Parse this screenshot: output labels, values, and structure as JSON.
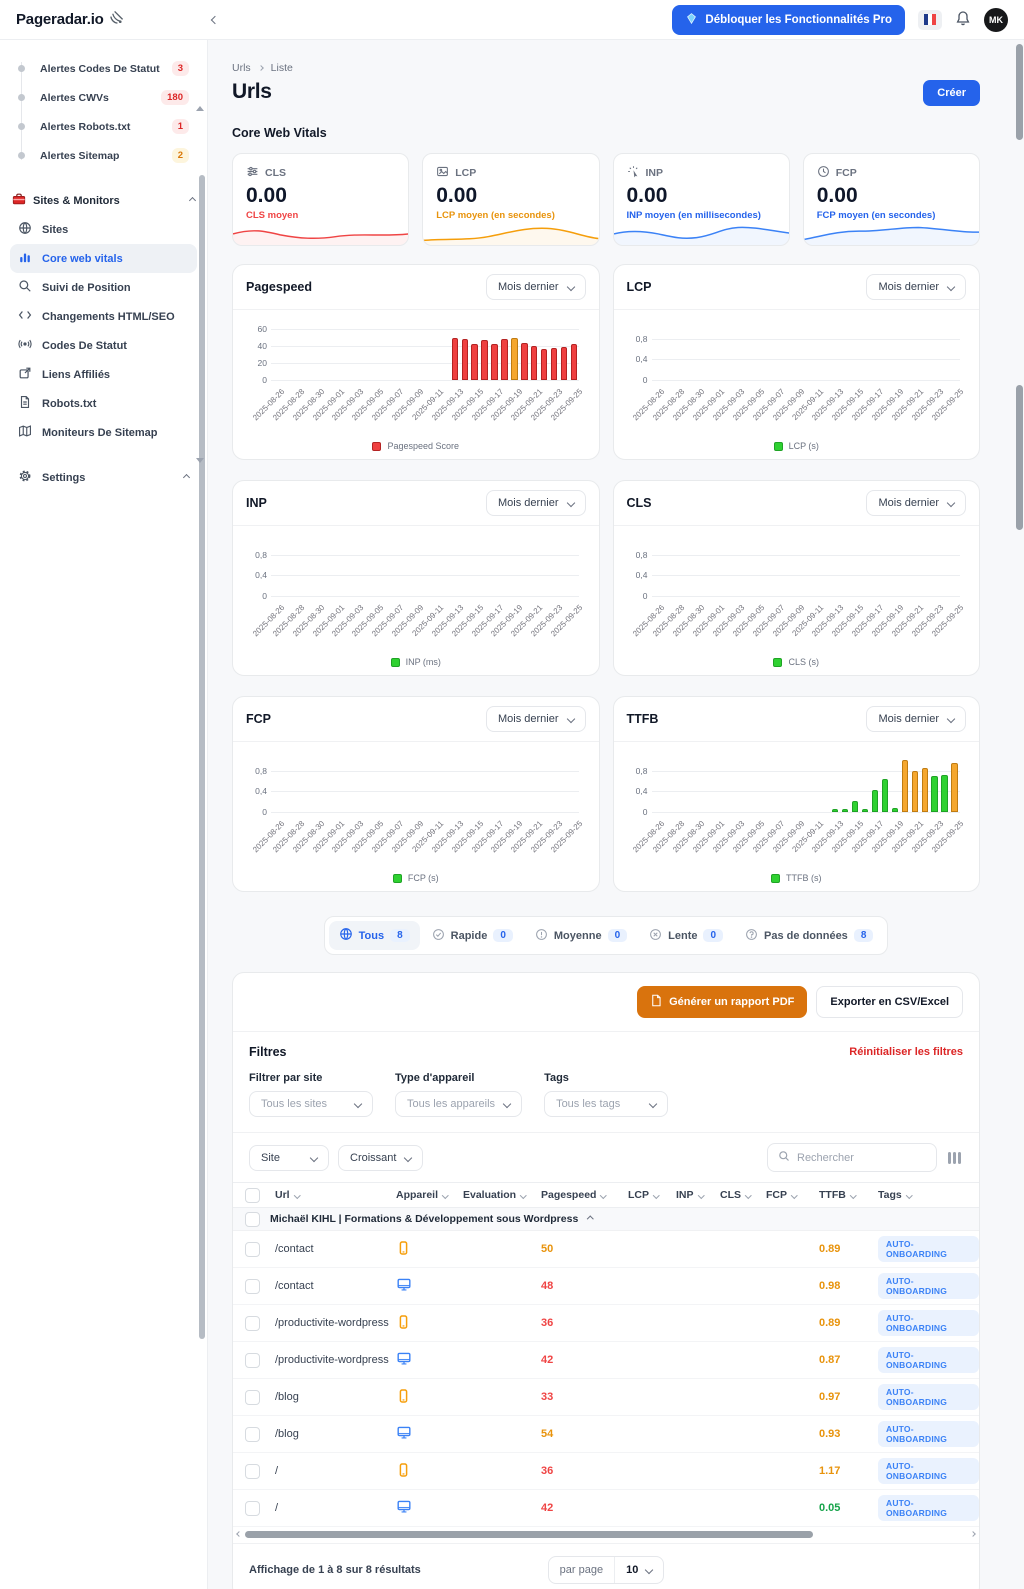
{
  "colors": {
    "accent_blue": "#2563eb",
    "pdf_orange": "#d9730d",
    "red": "#ef4444",
    "amber": "#e8930c",
    "green": "#16a34a",
    "bar_fill": {
      "red": "#ef4040",
      "orange": "#f5a72e",
      "green": "#2fd131"
    },
    "bar_border": {
      "red": "#b42323",
      "orange": "#c07c12",
      "green": "#1fa325"
    }
  },
  "header": {
    "logo": "Pageradar.io",
    "pro_button": "Débloquer les Fonctionnalités Pro",
    "avatar": "MK"
  },
  "sidebar": {
    "alerts": [
      {
        "label": "Alertes Codes De Statut",
        "count": "3",
        "tone": "red"
      },
      {
        "label": "Alertes CWVs",
        "count": "180",
        "tone": "red"
      },
      {
        "label": "Alertes Robots.txt",
        "count": "1",
        "tone": "red"
      },
      {
        "label": "Alertes Sitemap",
        "count": "2",
        "tone": "amber"
      }
    ],
    "section": "Sites & Monitors",
    "items": [
      {
        "label": "Sites",
        "icon": "globe",
        "active": false
      },
      {
        "label": "Core web vitals",
        "icon": "chart",
        "active": true
      },
      {
        "label": "Suivi de Position",
        "icon": "search",
        "active": false
      },
      {
        "label": "Changements HTML/SEO",
        "icon": "code",
        "active": false
      },
      {
        "label": "Codes De Statut",
        "icon": "signal",
        "active": false
      },
      {
        "label": "Liens Affiliés",
        "icon": "external",
        "active": false
      },
      {
        "label": "Robots.txt",
        "icon": "file",
        "active": false
      },
      {
        "label": "Moniteurs De Sitemap",
        "icon": "map",
        "active": false
      }
    ],
    "settings": "Settings"
  },
  "breadcrumb": {
    "parent": "Urls",
    "current": "Liste"
  },
  "page": {
    "title": "Urls",
    "create_button": "Créer",
    "section_title": "Core Web Vitals"
  },
  "metric_cards": [
    {
      "key": "CLS",
      "icon": "sliders",
      "value": "0.00",
      "caption": "CLS moyen",
      "color": "#ef4444",
      "spark": "red"
    },
    {
      "key": "LCP",
      "icon": "image",
      "value": "0.00",
      "caption": "LCP moyen (en secondes)",
      "color": "#e8930c",
      "spark": "orange"
    },
    {
      "key": "INP",
      "icon": "tap",
      "value": "0.00",
      "caption": "INP moyen (en millisecondes)",
      "color": "#2563eb",
      "spark": "blue1"
    },
    {
      "key": "FCP",
      "icon": "clock",
      "value": "0.00",
      "caption": "FCP moyen (en secondes)",
      "color": "#2563eb",
      "spark": "blue2"
    }
  ],
  "period_label": "Mois dernier",
  "chart_data": [
    {
      "key": "pagespeed",
      "type": "bar",
      "title": "Pagespeed",
      "period": "Mois dernier",
      "legend": "Pagespeed Score",
      "legend_color": "red",
      "x_start": "2025-08-26",
      "categories": [
        "2025-08-26",
        "2025-08-28",
        "2025-08-30",
        "2025-09-01",
        "2025-09-03",
        "2025-09-05",
        "2025-09-07",
        "2025-09-09",
        "2025-09-11",
        "2025-09-13",
        "2025-09-15",
        "2025-09-17",
        "2025-09-19",
        "2025-09-21",
        "2025-09-23",
        "2025-09-25"
      ],
      "ytick_values": [
        0,
        20,
        40,
        60
      ],
      "yticks": [
        "0",
        "20",
        "40",
        "60"
      ],
      "ymax": 66,
      "ylim": [
        0,
        60
      ],
      "bar_dates": [
        "2025-09-13",
        "2025-09-14",
        "2025-09-15",
        "2025-09-16",
        "2025-09-17",
        "2025-09-18",
        "2025-09-19",
        "2025-09-20",
        "2025-09-21",
        "2025-09-22",
        "2025-09-23",
        "2025-09-24",
        "2025-09-25"
      ],
      "values": [
        49,
        48,
        43,
        47,
        43,
        48,
        50,
        44,
        40,
        36,
        38,
        39,
        42
      ],
      "bar_colors": [
        "red",
        "red",
        "red",
        "red",
        "red",
        "red",
        "orange",
        "red",
        "red",
        "red",
        "red",
        "red",
        "red"
      ]
    },
    {
      "key": "lcp",
      "type": "bar",
      "title": "LCP",
      "period": "Mois dernier",
      "legend": "LCP (s)",
      "legend_color": "green",
      "x_start": "2025-08-26",
      "categories": [
        "2025-08-26",
        "2025-08-28",
        "2025-08-30",
        "2025-09-01",
        "2025-09-03",
        "2025-09-05",
        "2025-09-07",
        "2025-09-09",
        "2025-09-11",
        "2025-09-13",
        "2025-09-15",
        "2025-09-17",
        "2025-09-19",
        "2025-09-21",
        "2025-09-23",
        "2025-09-25"
      ],
      "ytick_values": [
        0,
        0.4,
        0.8
      ],
      "yticks": [
        "0",
        "0,4",
        "0,8"
      ],
      "ymax": 1.08,
      "ylim": [
        0,
        0.8
      ],
      "bar_dates": [],
      "values": [],
      "bar_colors": []
    },
    {
      "key": "inp",
      "type": "bar",
      "title": "INP",
      "period": "Mois dernier",
      "legend": "INP (ms)",
      "legend_color": "green",
      "x_start": "2025-08-26",
      "categories": [
        "2025-08-26",
        "2025-08-28",
        "2025-08-30",
        "2025-09-01",
        "2025-09-03",
        "2025-09-05",
        "2025-09-07",
        "2025-09-09",
        "2025-09-11",
        "2025-09-13",
        "2025-09-15",
        "2025-09-17",
        "2025-09-19",
        "2025-09-21",
        "2025-09-23",
        "2025-09-25"
      ],
      "ytick_values": [
        0,
        0.4,
        0.8
      ],
      "yticks": [
        "0",
        "0,4",
        "0,8"
      ],
      "ymax": 1.08,
      "ylim": [
        0,
        0.8
      ],
      "bar_dates": [],
      "values": [],
      "bar_colors": []
    },
    {
      "key": "cls",
      "type": "bar",
      "title": "CLS",
      "period": "Mois dernier",
      "legend": "CLS (s)",
      "legend_color": "green",
      "x_start": "2025-08-26",
      "categories": [
        "2025-08-26",
        "2025-08-28",
        "2025-08-30",
        "2025-09-01",
        "2025-09-03",
        "2025-09-05",
        "2025-09-07",
        "2025-09-09",
        "2025-09-11",
        "2025-09-13",
        "2025-09-15",
        "2025-09-17",
        "2025-09-19",
        "2025-09-21",
        "2025-09-23",
        "2025-09-25"
      ],
      "ytick_values": [
        0,
        0.4,
        0.8
      ],
      "yticks": [
        "0",
        "0,4",
        "0,8"
      ],
      "ymax": 1.08,
      "ylim": [
        0,
        0.8
      ],
      "bar_dates": [],
      "values": [],
      "bar_colors": []
    },
    {
      "key": "fcp",
      "type": "bar",
      "title": "FCP",
      "period": "Mois dernier",
      "legend": "FCP (s)",
      "legend_color": "green",
      "x_start": "2025-08-26",
      "categories": [
        "2025-08-26",
        "2025-08-28",
        "2025-08-30",
        "2025-09-01",
        "2025-09-03",
        "2025-09-05",
        "2025-09-07",
        "2025-09-09",
        "2025-09-11",
        "2025-09-13",
        "2025-09-15",
        "2025-09-17",
        "2025-09-19",
        "2025-09-21",
        "2025-09-23",
        "2025-09-25"
      ],
      "ytick_values": [
        0,
        0.4,
        0.8
      ],
      "yticks": [
        "0",
        "0,4",
        "0,8"
      ],
      "ymax": 1.08,
      "ylim": [
        0,
        0.8
      ],
      "bar_dates": [],
      "values": [],
      "bar_colors": []
    },
    {
      "key": "ttfb",
      "type": "bar",
      "title": "TTFB",
      "period": "Mois dernier",
      "legend": "TTFB (s)",
      "legend_color": "green",
      "x_start": "2025-08-26",
      "categories": [
        "2025-08-26",
        "2025-08-28",
        "2025-08-30",
        "2025-09-01",
        "2025-09-03",
        "2025-09-05",
        "2025-09-07",
        "2025-09-09",
        "2025-09-11",
        "2025-09-13",
        "2025-09-15",
        "2025-09-17",
        "2025-09-19",
        "2025-09-21",
        "2025-09-23",
        "2025-09-25"
      ],
      "ytick_values": [
        0,
        0.4,
        0.8
      ],
      "yticks": [
        "0",
        "0,4",
        "0,8"
      ],
      "ymax": 1.08,
      "ylim": [
        0,
        1.0
      ],
      "bar_dates": [
        "2025-09-13",
        "2025-09-14",
        "2025-09-15",
        "2025-09-16",
        "2025-09-17",
        "2025-09-18",
        "2025-09-19",
        "2025-09-20",
        "2025-09-21",
        "2025-09-22",
        "2025-09-23",
        "2025-09-24",
        "2025-09-25"
      ],
      "values": [
        0.05,
        0.06,
        0.22,
        0.06,
        0.43,
        0.64,
        0.07,
        1.0,
        0.8,
        0.85,
        0.7,
        0.72,
        0.95
      ],
      "bar_colors": [
        "green",
        "green",
        "green",
        "green",
        "green",
        "green",
        "green",
        "orange",
        "orange",
        "orange",
        "green",
        "green",
        "orange"
      ]
    }
  ],
  "status_tabs": [
    {
      "label": "Tous",
      "count": "8",
      "icon": "globe",
      "active": true
    },
    {
      "label": "Rapide",
      "count": "0",
      "icon": "check",
      "active": false
    },
    {
      "label": "Moyenne",
      "count": "0",
      "icon": "exclaim",
      "active": false
    },
    {
      "label": "Lente",
      "count": "0",
      "icon": "cross",
      "active": false
    },
    {
      "label": "Pas de données",
      "count": "8",
      "icon": "question",
      "active": false
    }
  ],
  "toolbar": {
    "pdf_button": "Générer un rapport PDF",
    "export_button": "Exporter en CSV/Excel"
  },
  "filters": {
    "title": "Filtres",
    "reset": "Réinitialiser les filtres",
    "groups": [
      {
        "label": "Filtrer par site",
        "value": "Tous les sites"
      },
      {
        "label": "Type d'appareil",
        "value": "Tous les appareils"
      },
      {
        "label": "Tags",
        "value": "Tous les tags"
      }
    ]
  },
  "sort": {
    "site": "Site",
    "order": "Croissant",
    "search_placeholder": "Rechercher"
  },
  "table": {
    "columns": [
      "Url",
      "Appareil",
      "Evaluation",
      "Pagespeed",
      "LCP",
      "INP",
      "CLS",
      "FCP",
      "TTFB",
      "Tags"
    ],
    "group": "Michaël KIHL | Formations & Développement sous Wordpress",
    "rows": [
      {
        "url": "/contact",
        "device": "mobile",
        "pagespeed": "50",
        "pagespeed_color": "orange",
        "ttfb": "0.89",
        "ttfb_color": "orange",
        "tag": "AUTO-ONBOARDING"
      },
      {
        "url": "/contact",
        "device": "desktop",
        "pagespeed": "48",
        "pagespeed_color": "red",
        "ttfb": "0.98",
        "ttfb_color": "orange",
        "tag": "AUTO-ONBOARDING"
      },
      {
        "url": "/productivite-wordpress",
        "device": "mobile",
        "pagespeed": "36",
        "pagespeed_color": "red",
        "ttfb": "0.89",
        "ttfb_color": "orange",
        "tag": "AUTO-ONBOARDING"
      },
      {
        "url": "/productivite-wordpress",
        "device": "desktop",
        "pagespeed": "42",
        "pagespeed_color": "red",
        "ttfb": "0.87",
        "ttfb_color": "orange",
        "tag": "AUTO-ONBOARDING"
      },
      {
        "url": "/blog",
        "device": "mobile",
        "pagespeed": "33",
        "pagespeed_color": "red",
        "ttfb": "0.97",
        "ttfb_color": "orange",
        "tag": "AUTO-ONBOARDING"
      },
      {
        "url": "/blog",
        "device": "desktop",
        "pagespeed": "54",
        "pagespeed_color": "orange",
        "ttfb": "0.93",
        "ttfb_color": "orange",
        "tag": "AUTO-ONBOARDING"
      },
      {
        "url": "/",
        "device": "mobile",
        "pagespeed": "36",
        "pagespeed_color": "red",
        "ttfb": "1.17",
        "ttfb_color": "orange",
        "tag": "AUTO-ONBOARDING"
      },
      {
        "url": "/",
        "device": "desktop",
        "pagespeed": "42",
        "pagespeed_color": "red",
        "ttfb": "0.05",
        "ttfb_color": "green",
        "tag": "AUTO-ONBOARDING"
      }
    ]
  },
  "pagination": {
    "summary": "Affichage de 1 à 8 sur 8 résultats",
    "per_page_label": "par page",
    "per_page": "10"
  }
}
